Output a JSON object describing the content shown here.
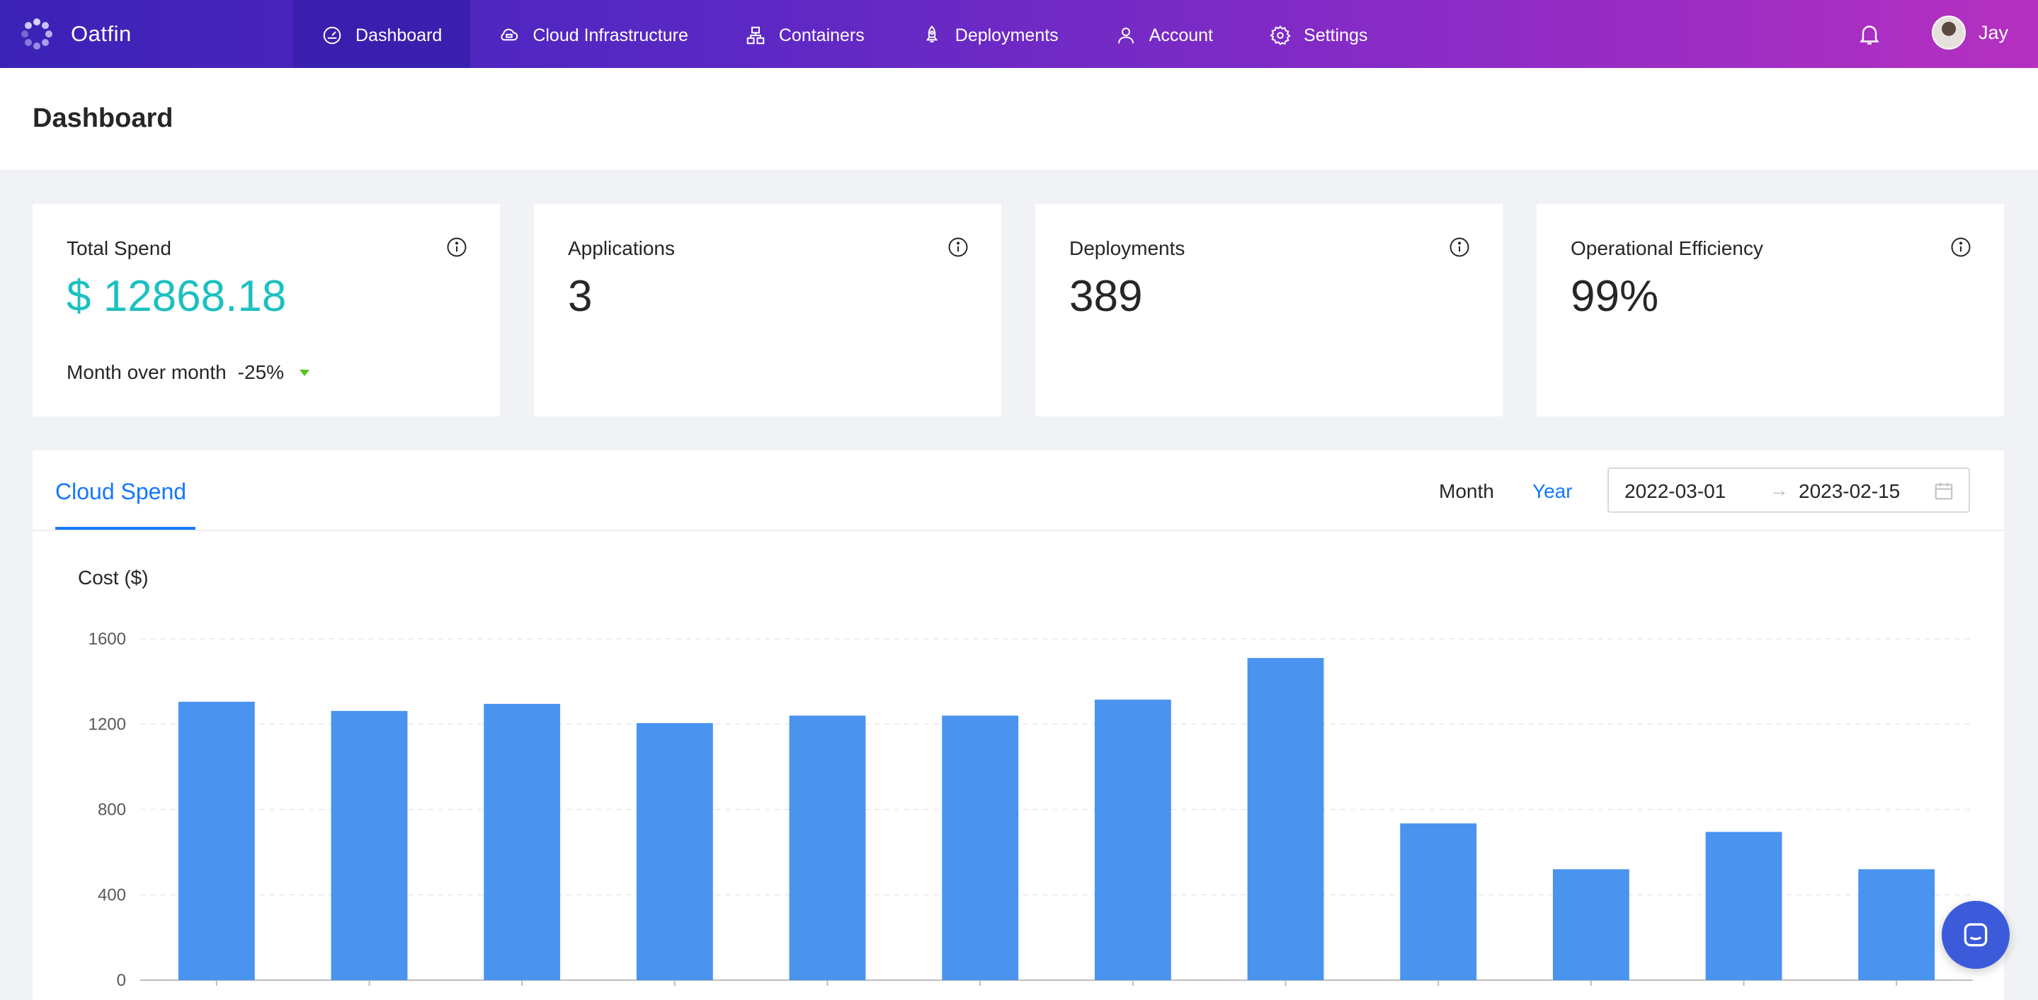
{
  "brand": {
    "name": "Oatfin"
  },
  "nav": [
    {
      "label": "Dashboard",
      "icon": "dashboard-icon",
      "active": true
    },
    {
      "label": "Cloud Infrastructure",
      "icon": "cloud-icon",
      "active": false
    },
    {
      "label": "Containers",
      "icon": "containers-icon",
      "active": false
    },
    {
      "label": "Deployments",
      "icon": "rocket-icon",
      "active": false
    },
    {
      "label": "Account",
      "icon": "user-icon",
      "active": false
    },
    {
      "label": "Settings",
      "icon": "gear-icon",
      "active": false
    }
  ],
  "user": {
    "name": "Jay"
  },
  "page": {
    "title": "Dashboard"
  },
  "stats": {
    "total_spend": {
      "label": "Total Spend",
      "value": "$ 12868.18",
      "mom_label": "Month over month",
      "mom_value": "-25%"
    },
    "applications": {
      "label": "Applications",
      "value": "3"
    },
    "deployments": {
      "label": "Deployments",
      "value": "389"
    },
    "efficiency": {
      "label": "Operational Efficiency",
      "value": "99%"
    }
  },
  "spend_panel": {
    "tab_label": "Cloud Spend",
    "range_month": "Month",
    "range_year": "Year",
    "range_active": "Year",
    "date_start": "2022-03-01",
    "date_end": "2023-02-15",
    "date_separator": "→"
  },
  "colors": {
    "accent": "#1677ff",
    "bar": "#4a93ee",
    "teal": "#1dc0c0",
    "trend_down": "#52c41a"
  },
  "chart_data": {
    "type": "bar",
    "ylabel": "Cost ($)",
    "ylim": [
      0,
      1600
    ],
    "yticks": [
      0,
      400,
      800,
      1200,
      1600
    ],
    "grid": true,
    "values": [
      1305,
      1262,
      1295,
      1205,
      1240,
      1240,
      1315,
      1510,
      735,
      520,
      695,
      520
    ]
  }
}
